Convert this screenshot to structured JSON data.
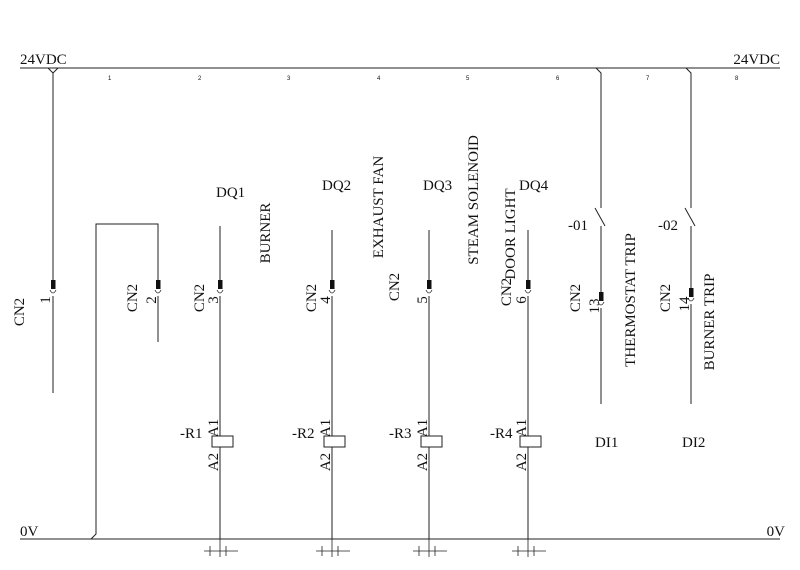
{
  "supply": {
    "top_left": "24VDC",
    "top_right": "24VDC",
    "bottom_left": "0V",
    "bottom_right": "0V"
  },
  "column_numbers": [
    "1",
    "2",
    "3",
    "4",
    "5",
    "6",
    "7",
    "8"
  ],
  "connector": {
    "name": "CN2",
    "pins": [
      "1",
      "2",
      "3",
      "4",
      "5",
      "6",
      "13",
      "14"
    ]
  },
  "outputs": [
    {
      "tag": "DQ1",
      "function": "BURNER",
      "pin": "3",
      "relay": "-R1"
    },
    {
      "tag": "DQ2",
      "function": "EXHAUST FAN",
      "pin": "4",
      "relay": "-R2"
    },
    {
      "tag": "DQ3",
      "function": "STEAM SOLENOID",
      "pin": "5",
      "relay": "-R3"
    },
    {
      "tag": "DQ4",
      "function": "DOOR LIGHT",
      "pin": "6",
      "relay": "-R4"
    }
  ],
  "inputs": [
    {
      "contact": "-01",
      "function": "THERMOSTAT TRIP",
      "pin": "13",
      "tag": "DI1"
    },
    {
      "contact": "-02",
      "function": "BURNER TRIP",
      "pin": "14",
      "tag": "DI2"
    }
  ],
  "coil_terminals": {
    "a1": "A1",
    "a2": "A2"
  }
}
